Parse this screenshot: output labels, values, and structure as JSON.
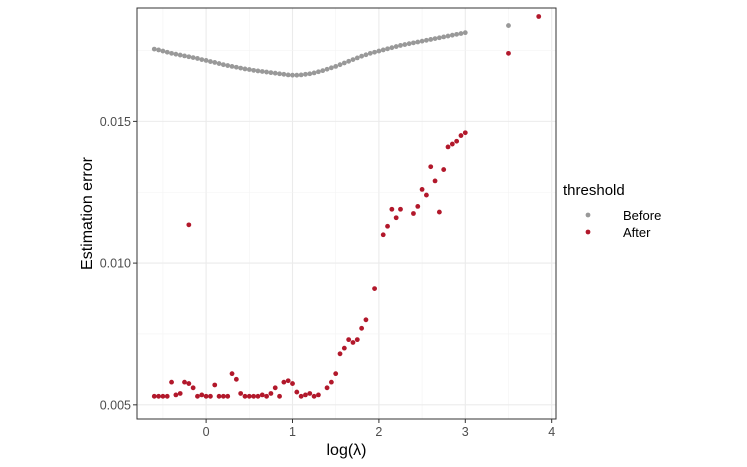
{
  "chart_data": {
    "type": "scatter",
    "xlabel": "log(λ)",
    "ylabel": "Estimation error",
    "xlim": [
      -0.8,
      4.05
    ],
    "ylim": [
      0.0045,
      0.019
    ],
    "xticks": [
      0,
      1,
      2,
      3,
      4
    ],
    "yticks": [
      0.005,
      0.01,
      0.015
    ],
    "xtick_labels": [
      "0",
      "1",
      "2",
      "3",
      "4"
    ],
    "ytick_labels": [
      "0.005",
      "0.010",
      "0.015"
    ],
    "grid": true,
    "legend": {
      "title": "threshold",
      "position": "right",
      "entries": [
        "Before",
        "After"
      ]
    },
    "series": [
      {
        "name": "Before",
        "color": "#999999",
        "points": [
          [
            -0.6,
            0.01755
          ],
          [
            -0.55,
            0.01752
          ],
          [
            -0.5,
            0.01748
          ],
          [
            -0.45,
            0.01744
          ],
          [
            -0.4,
            0.0174
          ],
          [
            -0.35,
            0.01737
          ],
          [
            -0.3,
            0.01734
          ],
          [
            -0.25,
            0.01731
          ],
          [
            -0.2,
            0.01728
          ],
          [
            -0.15,
            0.01725
          ],
          [
            -0.1,
            0.01722
          ],
          [
            -0.05,
            0.01718
          ],
          [
            0.0,
            0.01715
          ],
          [
            0.05,
            0.01711
          ],
          [
            0.1,
            0.01708
          ],
          [
            0.15,
            0.01704
          ],
          [
            0.2,
            0.017
          ],
          [
            0.25,
            0.01697
          ],
          [
            0.3,
            0.01694
          ],
          [
            0.35,
            0.01691
          ],
          [
            0.4,
            0.01688
          ],
          [
            0.45,
            0.01685
          ],
          [
            0.5,
            0.01683
          ],
          [
            0.55,
            0.0168
          ],
          [
            0.6,
            0.01678
          ],
          [
            0.65,
            0.01676
          ],
          [
            0.7,
            0.01674
          ],
          [
            0.75,
            0.01672
          ],
          [
            0.8,
            0.0167
          ],
          [
            0.85,
            0.01668
          ],
          [
            0.9,
            0.01666
          ],
          [
            0.95,
            0.01664
          ],
          [
            1.0,
            0.01663
          ],
          [
            1.05,
            0.01663
          ],
          [
            1.1,
            0.01664
          ],
          [
            1.15,
            0.01666
          ],
          [
            1.2,
            0.01668
          ],
          [
            1.25,
            0.01671
          ],
          [
            1.3,
            0.01675
          ],
          [
            1.35,
            0.01679
          ],
          [
            1.4,
            0.01684
          ],
          [
            1.45,
            0.01689
          ],
          [
            1.5,
            0.01694
          ],
          [
            1.55,
            0.017
          ],
          [
            1.6,
            0.01706
          ],
          [
            1.65,
            0.01712
          ],
          [
            1.7,
            0.01718
          ],
          [
            1.75,
            0.01724
          ],
          [
            1.8,
            0.0173
          ],
          [
            1.85,
            0.01735
          ],
          [
            1.9,
            0.0174
          ],
          [
            1.95,
            0.01744
          ],
          [
            2.0,
            0.01748
          ],
          [
            2.05,
            0.01752
          ],
          [
            2.1,
            0.01756
          ],
          [
            2.15,
            0.0176
          ],
          [
            2.2,
            0.01764
          ],
          [
            2.25,
            0.01768
          ],
          [
            2.3,
            0.01771
          ],
          [
            2.35,
            0.01774
          ],
          [
            2.4,
            0.01777
          ],
          [
            2.45,
            0.0178
          ],
          [
            2.5,
            0.01783
          ],
          [
            2.55,
            0.01786
          ],
          [
            2.6,
            0.01789
          ],
          [
            2.65,
            0.01792
          ],
          [
            2.7,
            0.01795
          ],
          [
            2.75,
            0.01798
          ],
          [
            2.8,
            0.01801
          ],
          [
            2.85,
            0.01804
          ],
          [
            2.9,
            0.01807
          ],
          [
            2.95,
            0.0181
          ],
          [
            3.0,
            0.01813
          ],
          [
            3.5,
            0.01838
          ]
        ]
      },
      {
        "name": "After",
        "color": "#b2182b",
        "points": [
          [
            -0.6,
            0.0053
          ],
          [
            -0.55,
            0.0053
          ],
          [
            -0.5,
            0.0053
          ],
          [
            -0.45,
            0.0053
          ],
          [
            -0.4,
            0.0058
          ],
          [
            -0.35,
            0.00535
          ],
          [
            -0.3,
            0.0054
          ],
          [
            -0.25,
            0.0058
          ],
          [
            -0.2,
            0.00575
          ],
          [
            -0.2,
            0.01135
          ],
          [
            -0.15,
            0.0056
          ],
          [
            -0.1,
            0.0053
          ],
          [
            -0.05,
            0.00535
          ],
          [
            0.0,
            0.0053
          ],
          [
            0.05,
            0.0053
          ],
          [
            0.1,
            0.0057
          ],
          [
            0.15,
            0.0053
          ],
          [
            0.2,
            0.0053
          ],
          [
            0.25,
            0.0053
          ],
          [
            0.3,
            0.0061
          ],
          [
            0.35,
            0.0059
          ],
          [
            0.4,
            0.0054
          ],
          [
            0.45,
            0.0053
          ],
          [
            0.5,
            0.0053
          ],
          [
            0.55,
            0.0053
          ],
          [
            0.6,
            0.0053
          ],
          [
            0.65,
            0.00535
          ],
          [
            0.7,
            0.0053
          ],
          [
            0.75,
            0.0054
          ],
          [
            0.8,
            0.0056
          ],
          [
            0.85,
            0.0053
          ],
          [
            0.9,
            0.0058
          ],
          [
            0.95,
            0.00585
          ],
          [
            1.0,
            0.00575
          ],
          [
            1.05,
            0.00545
          ],
          [
            1.1,
            0.0053
          ],
          [
            1.15,
            0.00535
          ],
          [
            1.2,
            0.0054
          ],
          [
            1.25,
            0.0053
          ],
          [
            1.3,
            0.00535
          ],
          [
            1.4,
            0.0056
          ],
          [
            1.45,
            0.0058
          ],
          [
            1.5,
            0.0061
          ],
          [
            1.55,
            0.0068
          ],
          [
            1.6,
            0.007
          ],
          [
            1.65,
            0.0073
          ],
          [
            1.7,
            0.0072
          ],
          [
            1.75,
            0.0073
          ],
          [
            1.8,
            0.0077
          ],
          [
            1.85,
            0.008
          ],
          [
            1.95,
            0.0091
          ],
          [
            2.05,
            0.011
          ],
          [
            2.1,
            0.0113
          ],
          [
            2.15,
            0.0119
          ],
          [
            2.2,
            0.0116
          ],
          [
            2.25,
            0.0119
          ],
          [
            2.4,
            0.01175
          ],
          [
            2.45,
            0.012
          ],
          [
            2.5,
            0.0126
          ],
          [
            2.55,
            0.0124
          ],
          [
            2.6,
            0.0134
          ],
          [
            2.65,
            0.0129
          ],
          [
            2.7,
            0.0118
          ],
          [
            2.75,
            0.0133
          ],
          [
            2.8,
            0.0141
          ],
          [
            2.85,
            0.0142
          ],
          [
            2.9,
            0.0143
          ],
          [
            2.95,
            0.0145
          ],
          [
            3.0,
            0.0146
          ],
          [
            3.5,
            0.0174
          ],
          [
            3.85,
            0.0187
          ]
        ]
      }
    ]
  }
}
